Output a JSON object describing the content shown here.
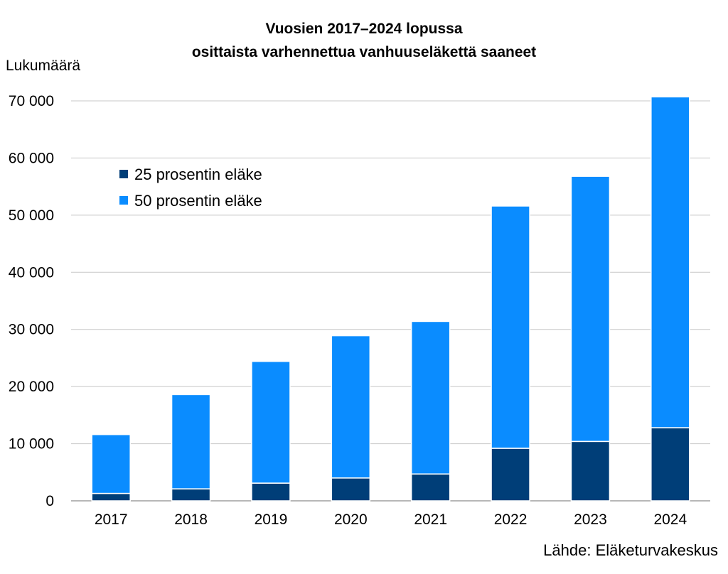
{
  "chart_data": {
    "type": "bar",
    "stacked": true,
    "title_line1": "Vuosien 2017–2024 lopussa",
    "title_line2": "osittaista varhennettua vanhuuseläkettä saaneet",
    "ylabel": "Lukumäärä",
    "xlabel": "",
    "source": "Lähde: Eläketurvakeskus",
    "categories": [
      "2017",
      "2018",
      "2019",
      "2020",
      "2021",
      "2022",
      "2023",
      "2024"
    ],
    "ylim": [
      0,
      70000
    ],
    "yticks": [
      0,
      10000,
      20000,
      30000,
      40000,
      50000,
      60000,
      70000
    ],
    "ytick_labels": [
      "0",
      "10 000",
      "20 000",
      "30 000",
      "40 000",
      "50 000",
      "60 000",
      "70 000"
    ],
    "grid": true,
    "legend_position": "top-left",
    "series": [
      {
        "name": "25 prosentin eläke",
        "color": "#003e78",
        "values": [
          1300,
          2100,
          3100,
          4000,
          4700,
          9200,
          10400,
          12800
        ]
      },
      {
        "name": "50 prosentin eläke",
        "color": "#0a8cff",
        "values": [
          10300,
          16500,
          21300,
          24900,
          26700,
          42400,
          46400,
          57900
        ]
      }
    ]
  }
}
